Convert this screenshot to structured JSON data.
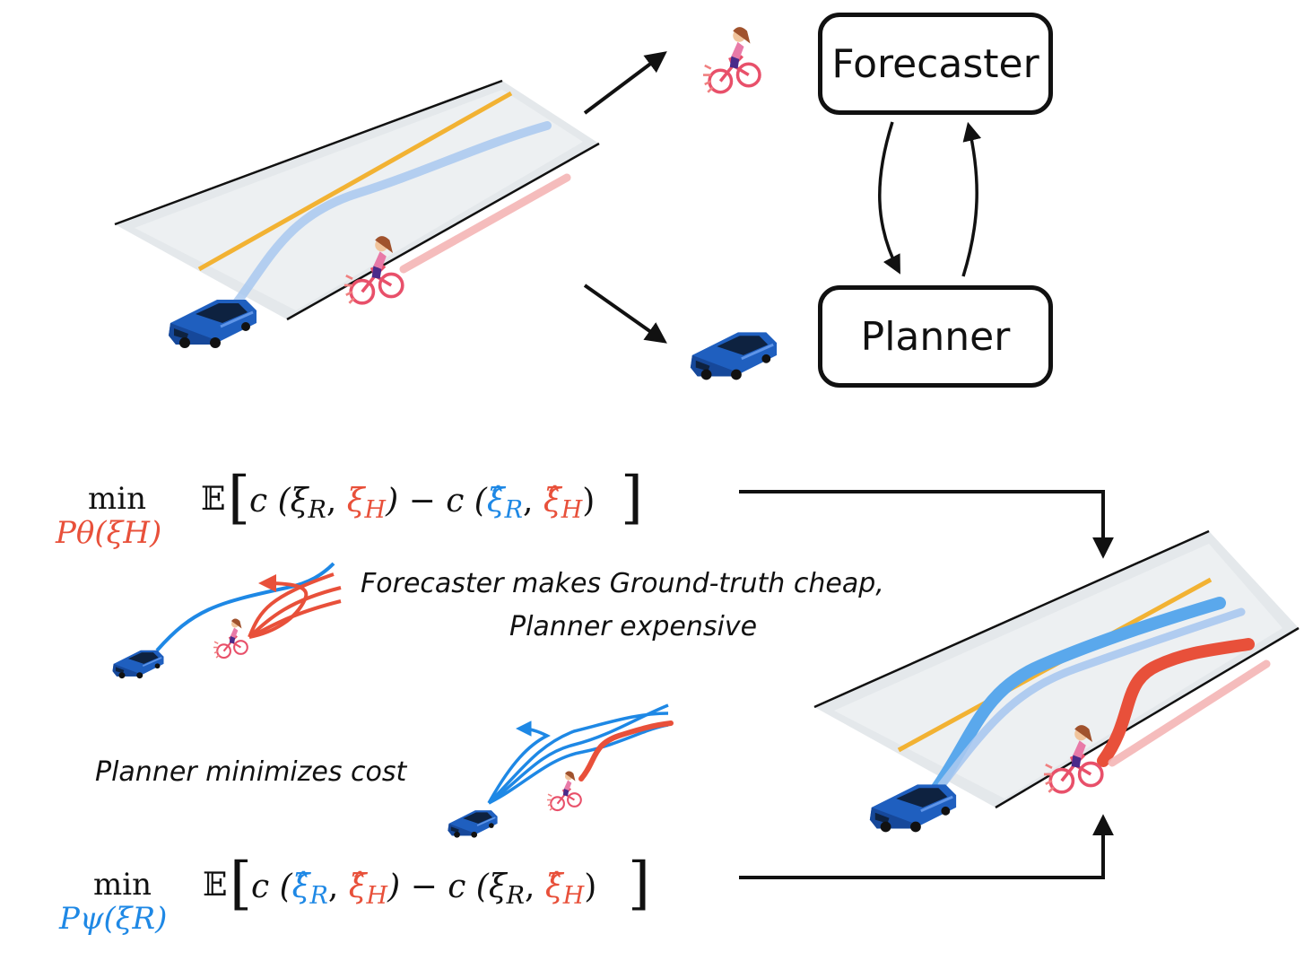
{
  "boxes": {
    "forecaster": "Forecaster",
    "planner": "Planner"
  },
  "captions": {
    "forecaster_line1": "Forecaster makes Ground-truth cheap,",
    "forecaster_line2": "Planner expensive",
    "planner": "Planner minimizes cost"
  },
  "equations": {
    "top": {
      "min": "min",
      "subscript": "Pθ(ξH)",
      "expectation": "𝔼",
      "c1": "c (ξ",
      "c1_r_sub": "R",
      "comma": ", ",
      "xi_h": "ξ",
      "h_sub": "H",
      "minus": ") − c (",
      "xi_hat_r": "ξ̂",
      "r_sub": "R",
      "xi_hat_h": "ξ̂",
      "h_sub2": "H",
      "close": ")"
    },
    "bottom": {
      "min": "min",
      "subscript": "Pψ(ξR)",
      "expectation": "𝔼",
      "c1": "c (",
      "xi_hat_r": "ξ̂",
      "r_sub": "R",
      "comma": ", ",
      "xi_hat_h": "ξ̂",
      "h_sub": "H",
      "minus": ") − c (ξ",
      "c2_r_sub": "R",
      "comma2": ", ",
      "xi_hat_h2": "ξ̂",
      "h_sub2": "H",
      "close": ")"
    }
  },
  "colors": {
    "robot_blue": "#1e88e5",
    "human_red": "#e8503a",
    "lane_yellow": "#f2b233",
    "road_gray": "#e3e7ea",
    "car_blue": "#1f5fbf"
  }
}
